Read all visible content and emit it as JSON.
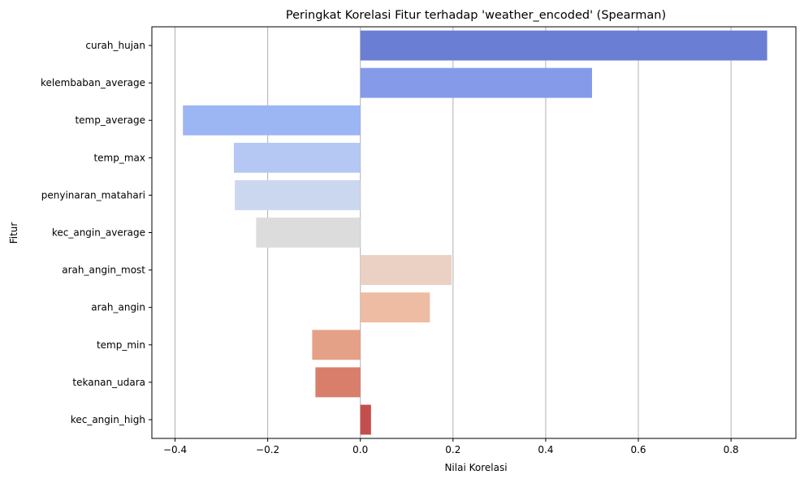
{
  "chart_data": {
    "type": "bar",
    "orientation": "horizontal",
    "title": "Peringkat Korelasi Fitur terhadap 'weather_encoded' (Spearman)",
    "xlabel": "Nilai Korelasi",
    "ylabel": "Fitur",
    "xlim": [
      -0.45,
      0.94
    ],
    "xticks": [
      -0.4,
      -0.2,
      0.0,
      0.2,
      0.4,
      0.6,
      0.8
    ],
    "xtick_labels": [
      "−0.4",
      "−0.2",
      "0.0",
      "0.2",
      "0.4",
      "0.6",
      "0.8"
    ],
    "grid": "x-axis vertical lines",
    "categories": [
      "curah_hujan",
      "kelembaban_average",
      "temp_average",
      "temp_max",
      "penyinaran_matahari",
      "kec_angin_average",
      "arah_angin_most",
      "arah_angin",
      "temp_min",
      "tekanan_udara",
      "kec_angin_high"
    ],
    "values": [
      0.878,
      0.5,
      -0.383,
      -0.273,
      -0.271,
      -0.225,
      0.197,
      0.15,
      -0.104,
      -0.097,
      0.023
    ],
    "colors": [
      "#6a7ed3",
      "#859bea",
      "#9cb5f3",
      "#b4c8f3",
      "#cbd7ee",
      "#dcdcdc",
      "#ebd0c4",
      "#eebba3",
      "#e5a187",
      "#d87e6b",
      "#c44e4b"
    ]
  }
}
